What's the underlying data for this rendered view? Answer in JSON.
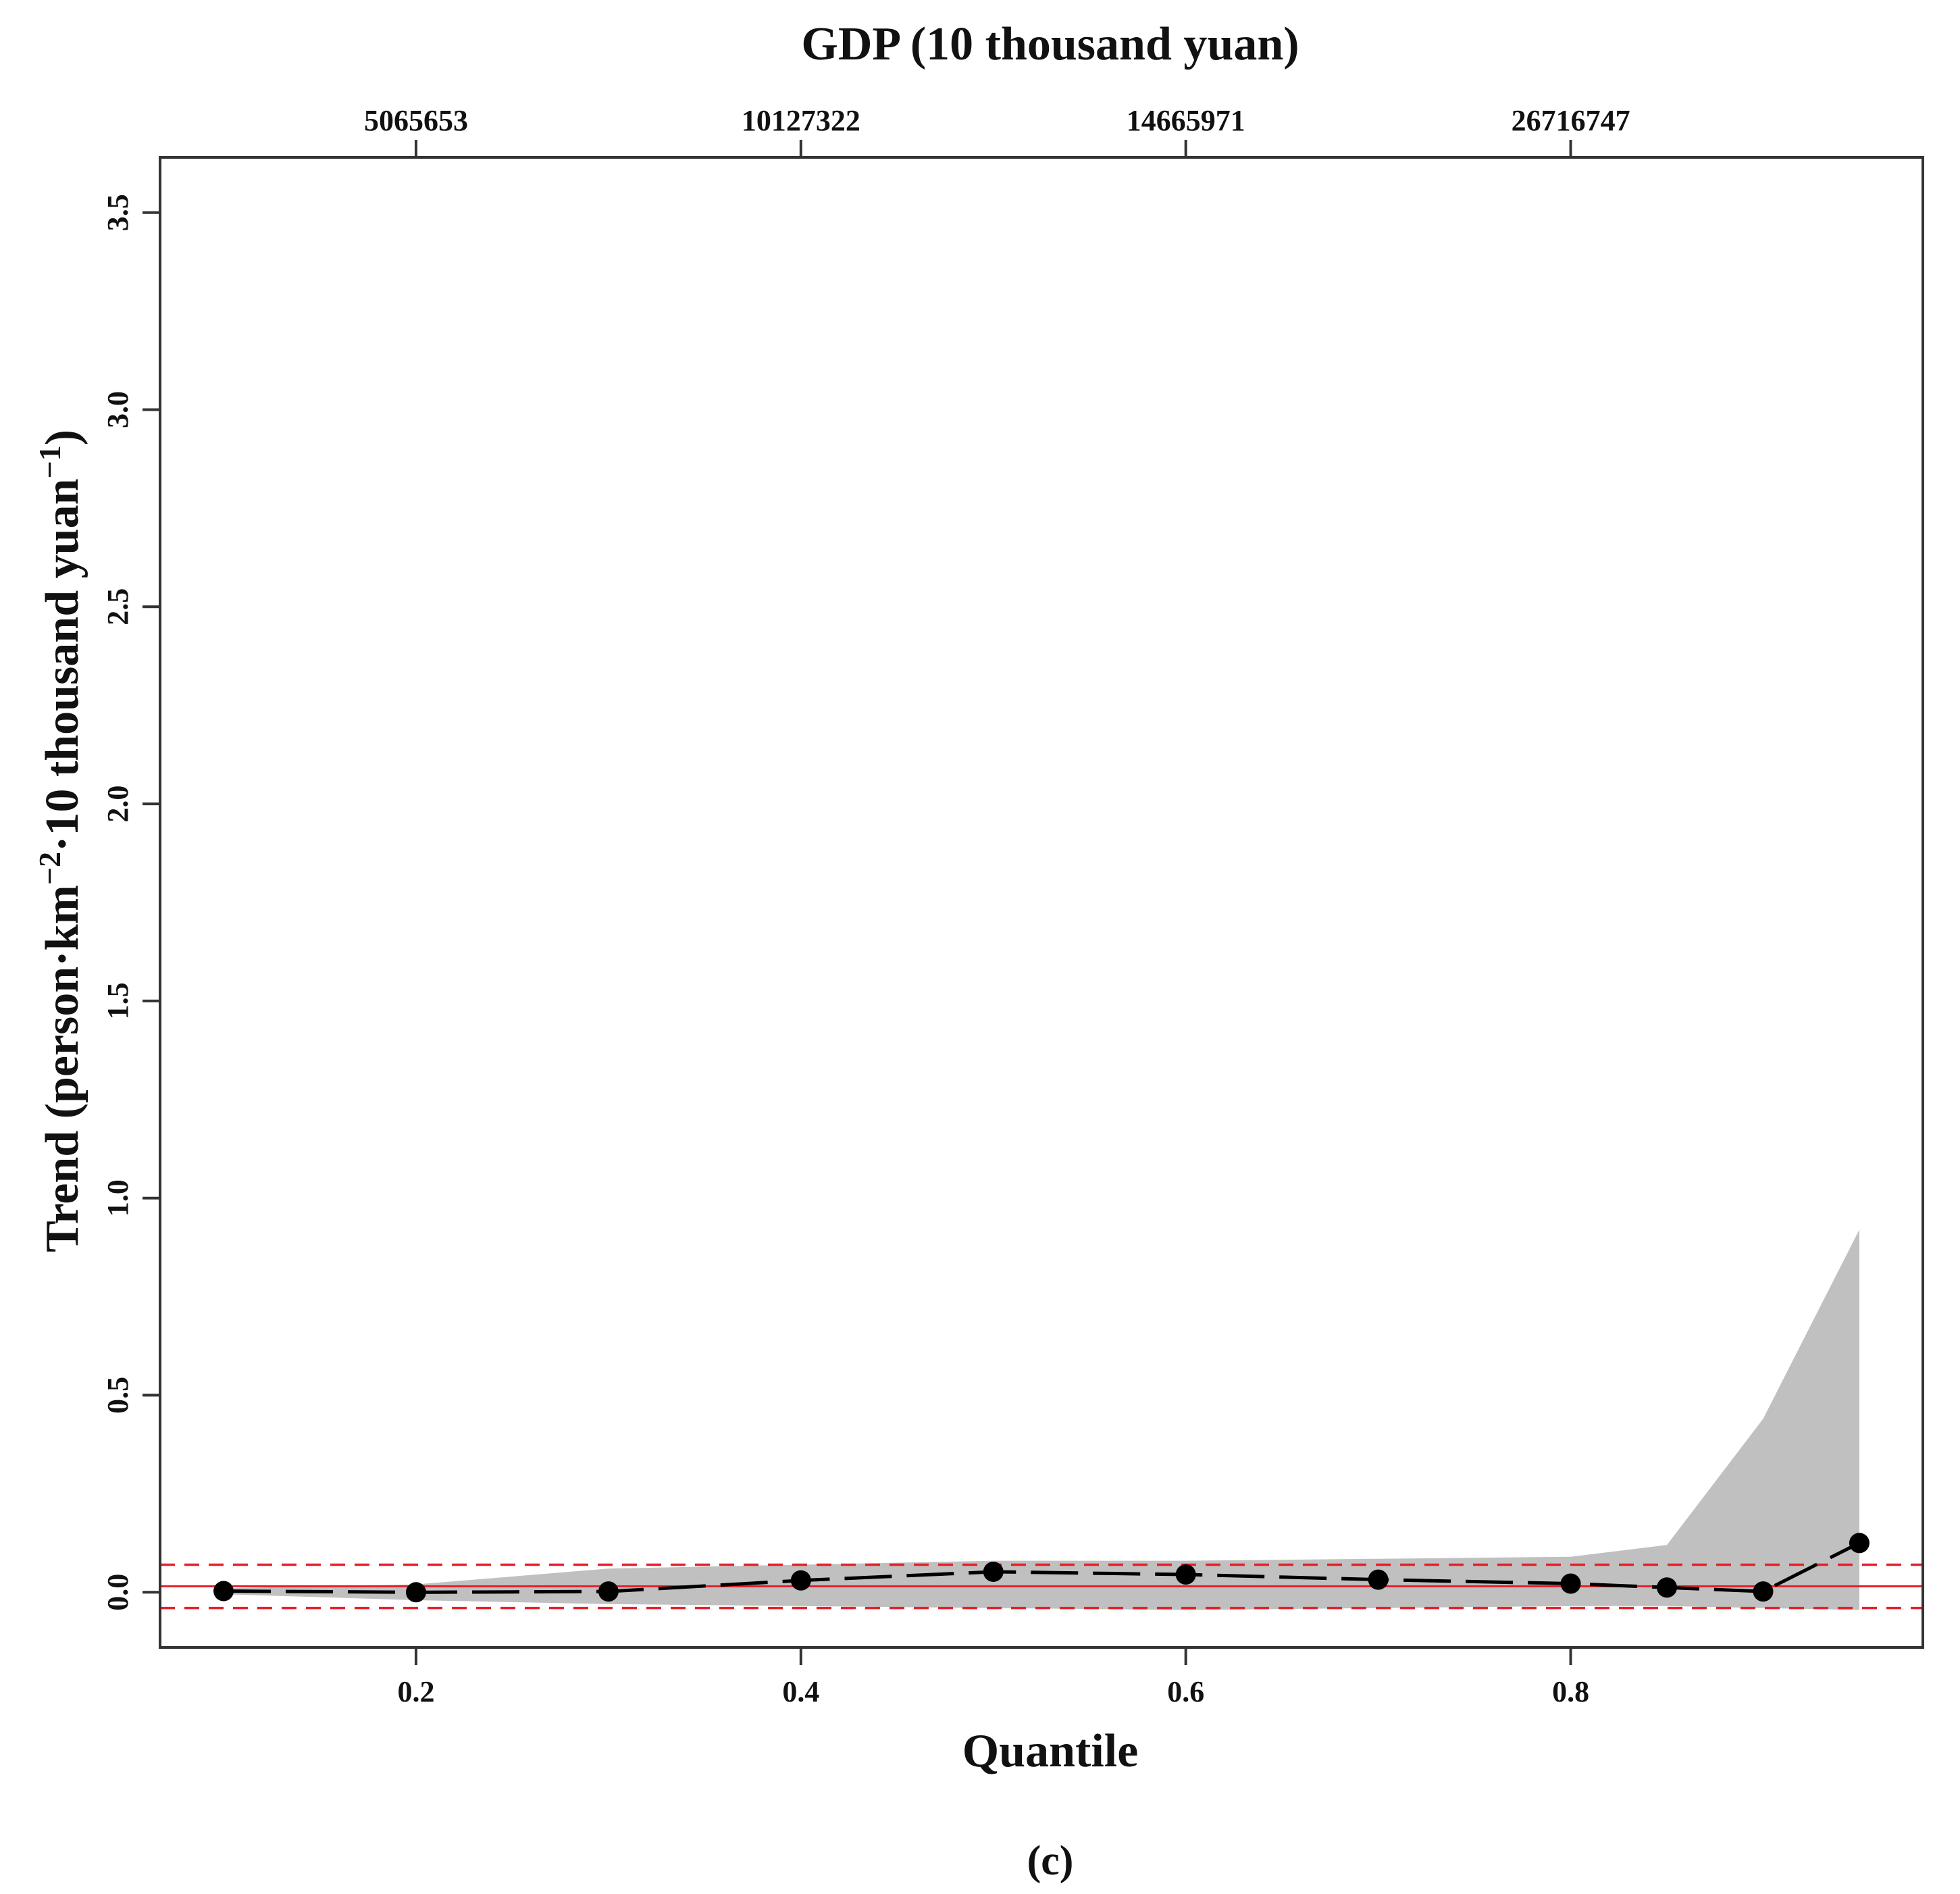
{
  "chart_data": {
    "type": "line",
    "title": "",
    "top_axis_label": "GDP (10 thousand yuan)",
    "top_ticks": [
      {
        "q": 0.2,
        "label": "5065653"
      },
      {
        "q": 0.4,
        "label": "10127322"
      },
      {
        "q": 0.6,
        "label": "14665971"
      },
      {
        "q": 0.8,
        "label": "26716747"
      }
    ],
    "xlabel": "Quantile",
    "ylabel_parts": {
      "pre": "Trend (person·km",
      "sup1": "−2",
      "mid": "·10 thousand yuan",
      "sup2": "−1",
      "post": ")"
    },
    "xlim": [
      0.067,
      0.983
    ],
    "ylim": [
      -0.14,
      3.64
    ],
    "x_ticks": [
      {
        "value": 0.2,
        "label": "0.2"
      },
      {
        "value": 0.4,
        "label": "0.4"
      },
      {
        "value": 0.6,
        "label": "0.6"
      },
      {
        "value": 0.8,
        "label": "0.8"
      }
    ],
    "y_ticks": [
      {
        "value": 0.0,
        "label": "0.0"
      },
      {
        "value": 0.5,
        "label": "0.5"
      },
      {
        "value": 1.0,
        "label": "1.0"
      },
      {
        "value": 1.5,
        "label": "1.5"
      },
      {
        "value": 2.0,
        "label": "2.0"
      },
      {
        "value": 2.5,
        "label": "2.5"
      },
      {
        "value": 3.0,
        "label": "3.0"
      },
      {
        "value": 3.5,
        "label": "3.5"
      }
    ],
    "grid": false,
    "series": [
      {
        "x": [
          0.1,
          0.2,
          0.3,
          0.4,
          0.5,
          0.6,
          0.7,
          0.8,
          0.85,
          0.9,
          0.95
        ],
        "y": [
          0.003,
          0.0,
          0.002,
          0.03,
          0.052,
          0.045,
          0.032,
          0.022,
          0.012,
          0.002,
          0.125
        ],
        "color": "#000000",
        "style": "dashed-with-points"
      }
    ],
    "confidence_band": {
      "x": [
        0.1,
        0.2,
        0.3,
        0.4,
        0.5,
        0.6,
        0.7,
        0.8,
        0.85,
        0.9,
        0.95
      ],
      "lower": [
        -0.005,
        -0.02,
        -0.03,
        -0.035,
        -0.04,
        -0.045,
        -0.04,
        -0.035,
        -0.035,
        -0.04,
        -0.045
      ],
      "upper": [
        0.01,
        0.02,
        0.06,
        0.07,
        0.08,
        0.08,
        0.085,
        0.09,
        0.12,
        0.44,
        0.92
      ],
      "color": "#c0c0c0"
    },
    "reference_lines": {
      "ols_estimate": 0.015,
      "ols_ci_lower": -0.04,
      "ols_ci_upper": 0.07,
      "color": "#e8202a"
    }
  },
  "panel_label": "(c)"
}
